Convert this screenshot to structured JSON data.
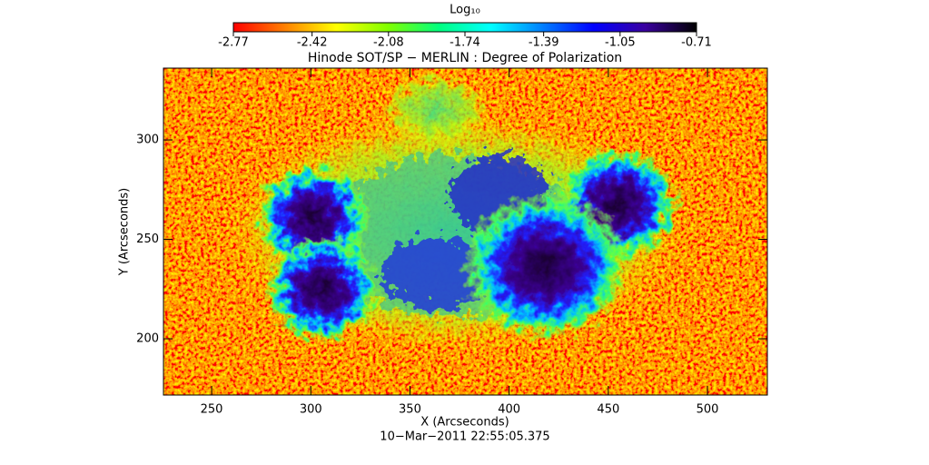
{
  "chart_data": {
    "type": "heatmap",
    "title": "Hinode SOT/SP − MERLIN : Degree of Polarization",
    "x_label": "X (Arcseconds)",
    "y_label": "Y (Arcseconds)",
    "footer": "10−Mar−2011 22:55:05.375",
    "xlim": [
      225.7,
      530.2
    ],
    "xticks": [
      250,
      300,
      350,
      400,
      450,
      500
    ],
    "ylim": [
      171.7,
      336.1
    ],
    "yticks": [
      200,
      250,
      300
    ],
    "colorbar_label": "Log₁₀",
    "colorbar_lim": [
      -2.77,
      -0.71
    ],
    "colorbar_ticks": [
      -2.77,
      -2.42,
      -2.08,
      -1.74,
      -1.39,
      -1.05,
      -0.71
    ],
    "colormap": [
      "#ff0000",
      "#ff8000",
      "#ffff00",
      "#80ff00",
      "#00ff80",
      "#00ffff",
      "#0080ff",
      "#0000ff",
      "#3a00a0",
      "#000000"
    ]
  }
}
